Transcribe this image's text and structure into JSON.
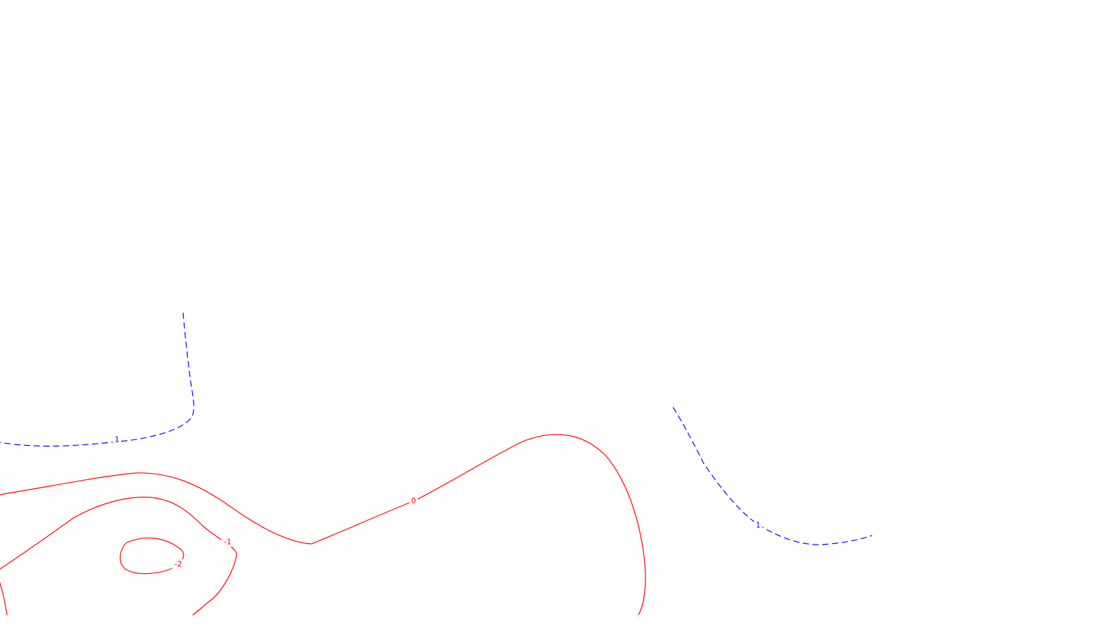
{
  "chart_data": {
    "type": "contour",
    "title": "",
    "xlabel": "",
    "ylabel": "",
    "legend": "none",
    "grid": false,
    "colors": {
      "positive": "#0000ff",
      "nonpositive": "#ff0000",
      "background": "#ffffff"
    },
    "contour_levels": [
      {
        "id": "upper-left-1",
        "level": 1,
        "label": "1",
        "style": "dashed",
        "color": "#0000ff"
      },
      {
        "id": "zero-0",
        "level": 0,
        "label": "0",
        "style": "solid",
        "color": "#ff0000"
      },
      {
        "id": "lower-left-neg1",
        "level": -1,
        "label": "-1",
        "style": "solid",
        "color": "#ff0000"
      },
      {
        "id": "lower-left-neg2",
        "level": -2,
        "label": "-2",
        "style": "solid",
        "color": "#ff0000"
      },
      {
        "id": "right-1",
        "level": 1,
        "label": "1",
        "style": "dashed",
        "color": "#0000ff"
      }
    ]
  }
}
